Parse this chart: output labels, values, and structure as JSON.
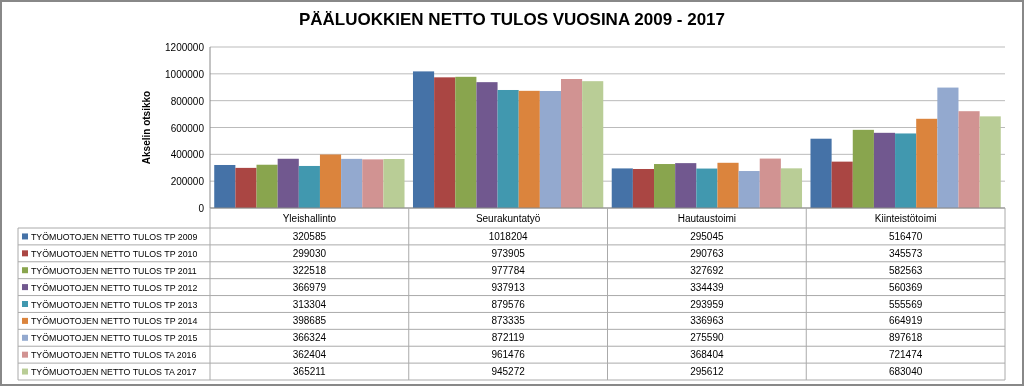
{
  "chart_data": {
    "type": "bar",
    "title": "PÄÄLUOKKIEN NETTO TULOS VUOSINA 2009 - 2017",
    "ylabel": "Akselin otsikko",
    "categories": [
      "Yleishallinto",
      "Seurakuntatyö",
      "Hautaustoimi",
      "Kiinteistötoimi"
    ],
    "series": [
      {
        "name": "TYÖMUOTOJEN NETTO TULOS TP 2009",
        "color": "#4572a7",
        "values": [
          320585,
          1018204,
          295045,
          516470
        ]
      },
      {
        "name": "TYÖMUOTOJEN NETTO TULOS TP 2010",
        "color": "#aa4643",
        "values": [
          299030,
          973905,
          290763,
          345573
        ]
      },
      {
        "name": "TYÖMUOTOJEN NETTO TULOS TP 2011",
        "color": "#89a54e",
        "values": [
          322518,
          977784,
          327692,
          582563
        ]
      },
      {
        "name": "TYÖMUOTOJEN NETTO TULOS TP 2012",
        "color": "#71588f",
        "values": [
          366979,
          937913,
          334439,
          560369
        ]
      },
      {
        "name": "TYÖMUOTOJEN NETTO TULOS TP 2013",
        "color": "#4198af",
        "values": [
          313304,
          879576,
          293959,
          555569
        ]
      },
      {
        "name": "TYÖMUOTOJEN NETTO TULOS TP 2014",
        "color": "#db843d",
        "values": [
          398685,
          873335,
          336963,
          664919
        ]
      },
      {
        "name": "TYÖMUOTOJEN NETTO TULOS TP 2015",
        "color": "#93a9cf",
        "values": [
          366324,
          872119,
          275590,
          897618
        ]
      },
      {
        "name": "TYÖMUOTOJEN NETTO TULOS TA 2016",
        "color": "#d19392",
        "values": [
          362404,
          961476,
          368404,
          721474
        ]
      },
      {
        "name": "TYÖMUOTOJEN NETTO TULOS TA 2017",
        "color": "#b9cd96",
        "values": [
          365211,
          945272,
          295612,
          683040
        ]
      }
    ],
    "ylim": [
      0,
      1200000
    ],
    "yticks": [
      0,
      200000,
      400000,
      600000,
      800000,
      1000000,
      1200000
    ],
    "grid": "y",
    "legend": "bottom",
    "data_labels": true
  }
}
